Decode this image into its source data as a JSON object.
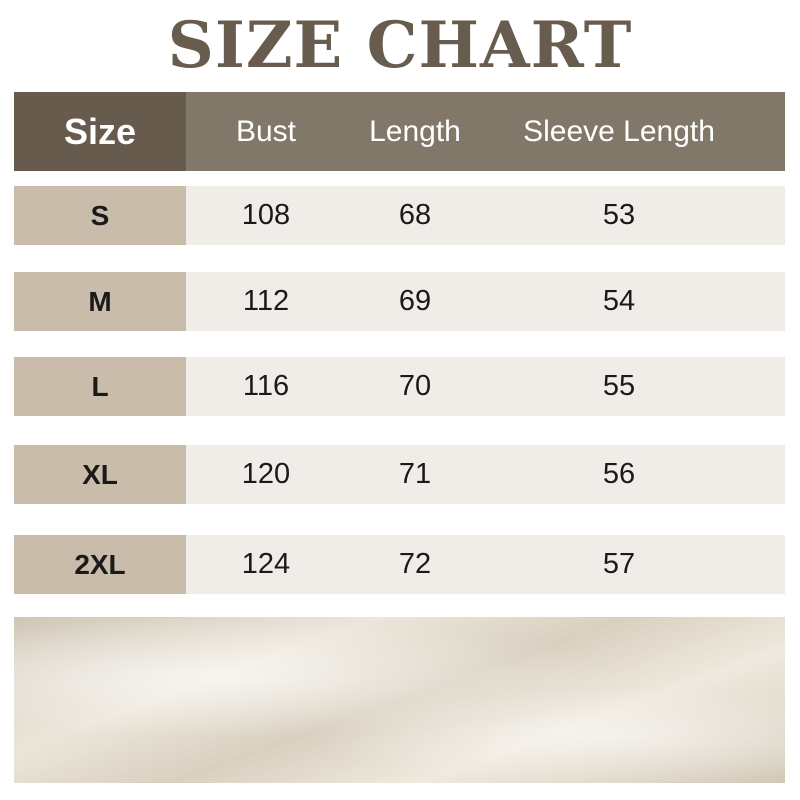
{
  "title": "SIZE CHART",
  "headers": [
    "Size",
    "Bust",
    "Length",
    "Sleeve Length"
  ],
  "rows": [
    [
      "S",
      "108",
      "68",
      "53"
    ],
    [
      "M",
      "112",
      "69",
      "54"
    ],
    [
      "L",
      "116",
      "70",
      "55"
    ],
    [
      "XL",
      "120",
      "71",
      "56"
    ],
    [
      "2XL",
      "124",
      "72",
      "57"
    ]
  ]
}
